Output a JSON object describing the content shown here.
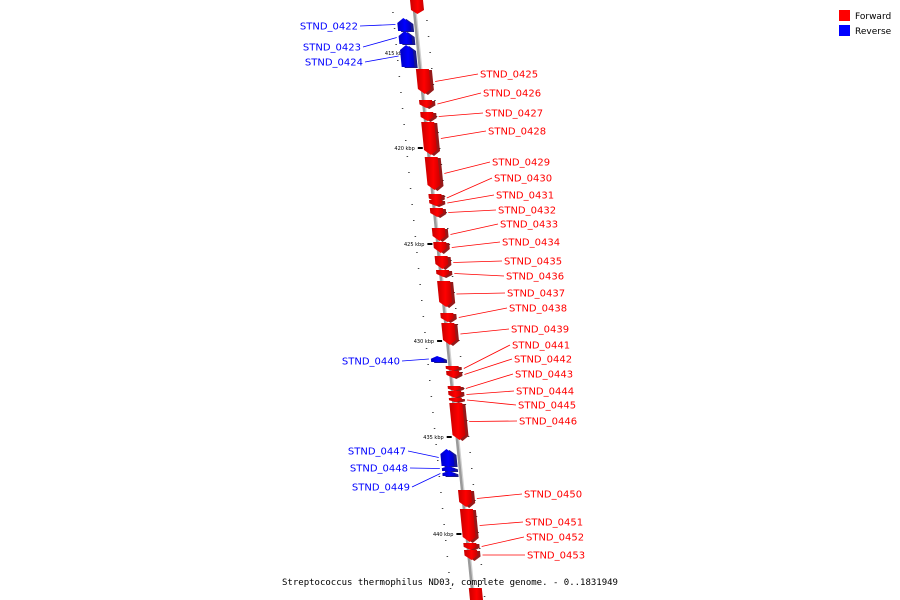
{
  "colors": {
    "forward": "#ff0000",
    "reverse": "#0000ff",
    "backbone": "#9a9a9a"
  },
  "legend": [
    {
      "label": "Forward",
      "strand": "forward"
    },
    {
      "label": "Reverse",
      "strand": "reverse"
    }
  ],
  "ticks": [
    "415 kbp",
    "420 kbp",
    "425 kbp",
    "430 kbp",
    "435 kbp",
    "440 kbp"
  ],
  "genes": [
    {
      "name": "STND_0422",
      "strand": "reverse"
    },
    {
      "name": "STND_0423",
      "strand": "reverse"
    },
    {
      "name": "STND_0424",
      "strand": "reverse"
    },
    {
      "name": "STND_0425",
      "strand": "forward"
    },
    {
      "name": "STND_0426",
      "strand": "forward"
    },
    {
      "name": "STND_0427",
      "strand": "forward"
    },
    {
      "name": "STND_0428",
      "strand": "forward"
    },
    {
      "name": "STND_0429",
      "strand": "forward"
    },
    {
      "name": "STND_0430",
      "strand": "forward"
    },
    {
      "name": "STND_0431",
      "strand": "forward"
    },
    {
      "name": "STND_0432",
      "strand": "forward"
    },
    {
      "name": "STND_0433",
      "strand": "forward"
    },
    {
      "name": "STND_0434",
      "strand": "forward"
    },
    {
      "name": "STND_0435",
      "strand": "forward"
    },
    {
      "name": "STND_0436",
      "strand": "forward"
    },
    {
      "name": "STND_0437",
      "strand": "forward"
    },
    {
      "name": "STND_0438",
      "strand": "forward"
    },
    {
      "name": "STND_0439",
      "strand": "forward"
    },
    {
      "name": "STND_0440",
      "strand": "reverse"
    },
    {
      "name": "STND_0441",
      "strand": "forward"
    },
    {
      "name": "STND_0442",
      "strand": "forward"
    },
    {
      "name": "STND_0443",
      "strand": "forward"
    },
    {
      "name": "STND_0444",
      "strand": "forward"
    },
    {
      "name": "STND_0445",
      "strand": "forward"
    },
    {
      "name": "STND_0446",
      "strand": "forward"
    },
    {
      "name": "STND_0447",
      "strand": "reverse"
    },
    {
      "name": "STND_0448",
      "strand": "reverse"
    },
    {
      "name": "STND_0449",
      "strand": "reverse"
    },
    {
      "name": "STND_0450",
      "strand": "forward"
    },
    {
      "name": "STND_0451",
      "strand": "forward"
    },
    {
      "name": "STND_0452",
      "strand": "forward"
    },
    {
      "name": "STND_0453",
      "strand": "forward"
    }
  ],
  "caption": "Streptococcus thermophilus ND03, complete genome. - 0..1831949"
}
